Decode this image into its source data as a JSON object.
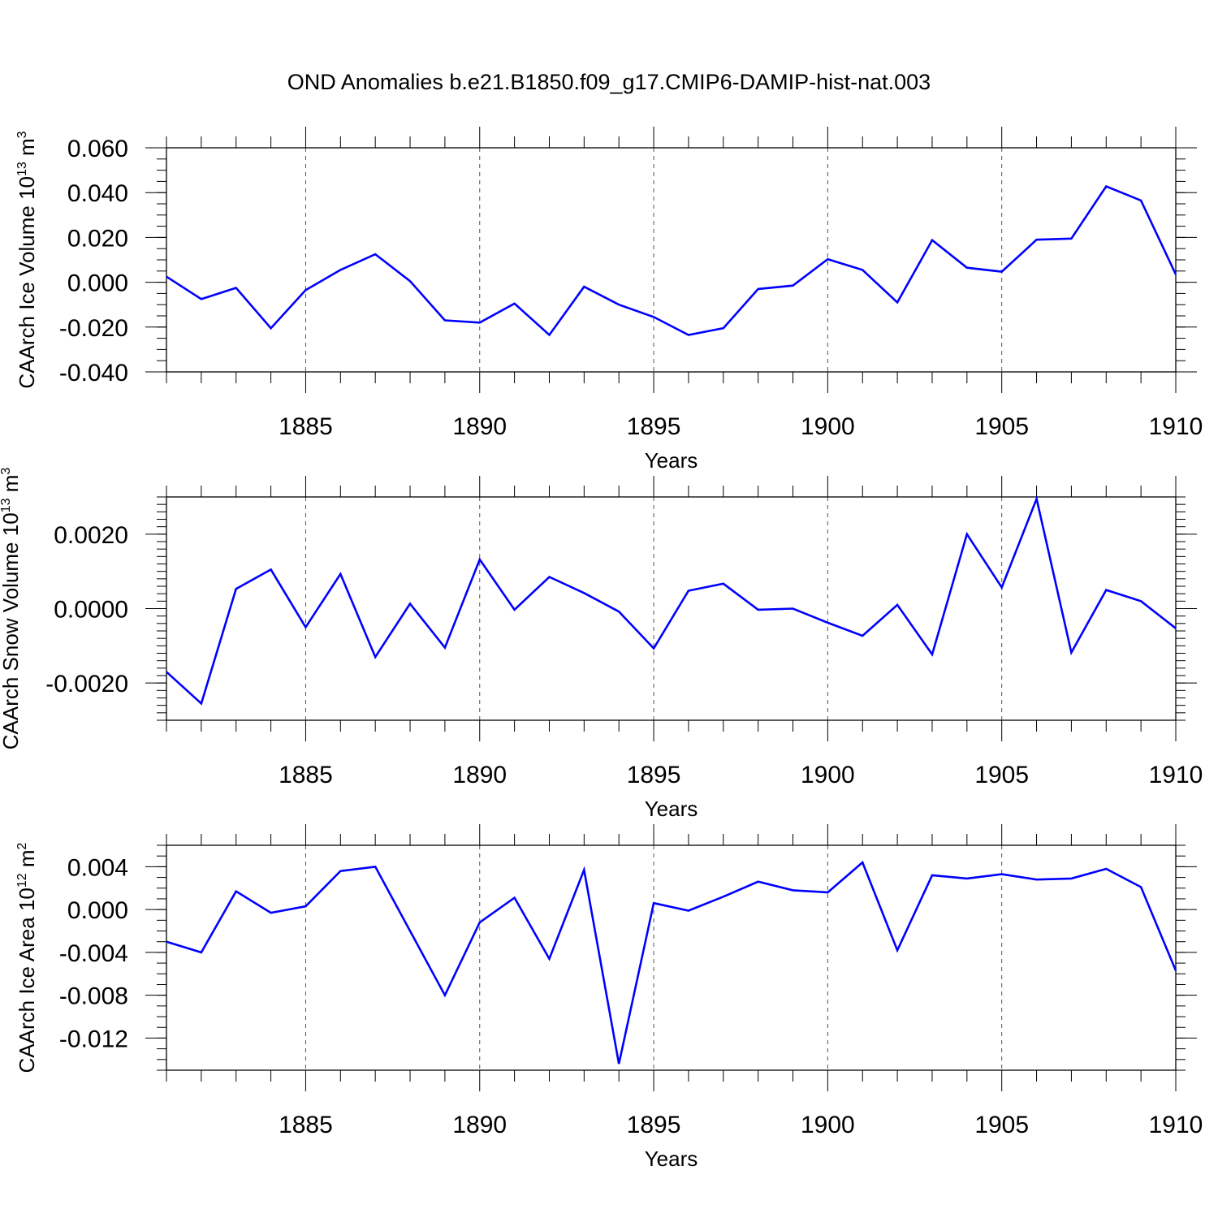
{
  "title": "OND Anomalies b.e21.B1850.f09_g17.CMIP6-DAMIP-hist-nat.003",
  "line_color": "#0000ff",
  "chart_data": [
    {
      "type": "line",
      "name": "ice-volume",
      "ylabel": "CAArch Ice Volume",
      "yunit_base": "10",
      "yunit_exp": "13",
      "yunit_suffix": "m",
      "yunit_suffix_exp": "3",
      "xlabel": "Years",
      "xlim": [
        1881,
        1910
      ],
      "ylim": [
        -0.04,
        0.06
      ],
      "yticks": [
        0.06,
        0.04,
        0.02,
        0.0,
        -0.02,
        -0.04
      ],
      "ytick_labels": [
        "0.060",
        "0.040",
        "0.020",
        "0.000",
        "-0.020",
        "-0.040"
      ],
      "xticks": [
        1885,
        1890,
        1895,
        1900,
        1905,
        1910
      ],
      "xtick_labels": [
        "1885",
        "1890",
        "1895",
        "1900",
        "1905",
        "1910"
      ],
      "grid": "dashed vertical at major x ticks",
      "x": [
        1881,
        1882,
        1883,
        1884,
        1885,
        1886,
        1887,
        1888,
        1889,
        1890,
        1891,
        1892,
        1893,
        1894,
        1895,
        1896,
        1897,
        1898,
        1899,
        1900,
        1901,
        1902,
        1903,
        1904,
        1905,
        1906,
        1907,
        1908,
        1909,
        1910
      ],
      "y": [
        0.0025,
        -0.0075,
        -0.0025,
        -0.0205,
        -0.0035,
        0.0055,
        0.0125,
        0.0005,
        -0.017,
        -0.018,
        -0.0095,
        -0.0235,
        -0.002,
        -0.01,
        -0.0155,
        -0.0235,
        -0.0205,
        -0.003,
        -0.0015,
        0.0103,
        0.0055,
        -0.009,
        0.0188,
        0.0065,
        0.0047,
        0.019,
        0.0195,
        0.0428,
        0.0365,
        0.0035
      ]
    },
    {
      "type": "line",
      "name": "snow-volume",
      "ylabel": "CAArch Snow Volume",
      "yunit_base": "10",
      "yunit_exp": "13",
      "yunit_suffix": "m",
      "yunit_suffix_exp": "3",
      "xlabel": "Years",
      "xlim": [
        1881,
        1910
      ],
      "ylim": [
        -0.003,
        0.003
      ],
      "yticks": [
        0.002,
        0.0,
        -0.002
      ],
      "ytick_labels": [
        "0.0020",
        "0.0000",
        "-0.0020"
      ],
      "xticks": [
        1885,
        1890,
        1895,
        1900,
        1905,
        1910
      ],
      "xtick_labels": [
        "1885",
        "1890",
        "1895",
        "1900",
        "1905",
        "1910"
      ],
      "grid": "dashed vertical at major x ticks",
      "x": [
        1881,
        1882,
        1883,
        1884,
        1885,
        1886,
        1887,
        1888,
        1889,
        1890,
        1891,
        1892,
        1893,
        1894,
        1895,
        1896,
        1897,
        1898,
        1899,
        1900,
        1901,
        1902,
        1903,
        1904,
        1905,
        1906,
        1907,
        1908,
        1909,
        1910
      ],
      "y": [
        -0.0017,
        -0.00255,
        0.00053,
        0.00105,
        -0.0005,
        0.00093,
        -0.0013,
        0.00013,
        -0.00105,
        0.00132,
        -3e-05,
        0.00085,
        0.00042,
        -8e-05,
        -0.00107,
        0.00048,
        0.00067,
        -3e-05,
        0.0,
        -0.00038,
        -0.00073,
        0.0001,
        -0.00123,
        0.002,
        0.00057,
        0.00295,
        -0.00118,
        0.0005,
        0.0002,
        -0.00053
      ]
    },
    {
      "type": "line",
      "name": "ice-area",
      "ylabel": "CAArch Ice Area",
      "yunit_base": "10",
      "yunit_exp": "12",
      "yunit_suffix": "m",
      "yunit_suffix_exp": "2",
      "xlabel": "Years",
      "xlim": [
        1881,
        1910
      ],
      "ylim": [
        -0.015,
        0.006
      ],
      "yticks": [
        0.004,
        0.0,
        -0.004,
        -0.008,
        -0.012
      ],
      "ytick_labels": [
        "0.004",
        "0.000",
        "-0.004",
        "-0.008",
        "-0.012"
      ],
      "xticks": [
        1885,
        1890,
        1895,
        1900,
        1905,
        1910
      ],
      "xtick_labels": [
        "1885",
        "1890",
        "1895",
        "1900",
        "1905",
        "1910"
      ],
      "grid": "dashed vertical at major x ticks",
      "x": [
        1881,
        1882,
        1883,
        1884,
        1885,
        1886,
        1887,
        1888,
        1889,
        1890,
        1891,
        1892,
        1893,
        1894,
        1895,
        1896,
        1897,
        1898,
        1899,
        1900,
        1901,
        1902,
        1903,
        1904,
        1905,
        1906,
        1907,
        1908,
        1909,
        1910
      ],
      "y": [
        -0.003,
        -0.004,
        0.0017,
        -0.0003,
        0.0003,
        0.0036,
        0.004,
        -0.002,
        -0.008,
        -0.0012,
        0.0011,
        -0.0046,
        0.0037,
        -0.0144,
        0.0006,
        -0.0001,
        0.0012,
        0.0026,
        0.0018,
        0.0016,
        0.0044,
        -0.0038,
        0.0032,
        0.0029,
        0.0033,
        0.0028,
        0.0029,
        0.0038,
        0.0021,
        -0.0057
      ]
    }
  ]
}
